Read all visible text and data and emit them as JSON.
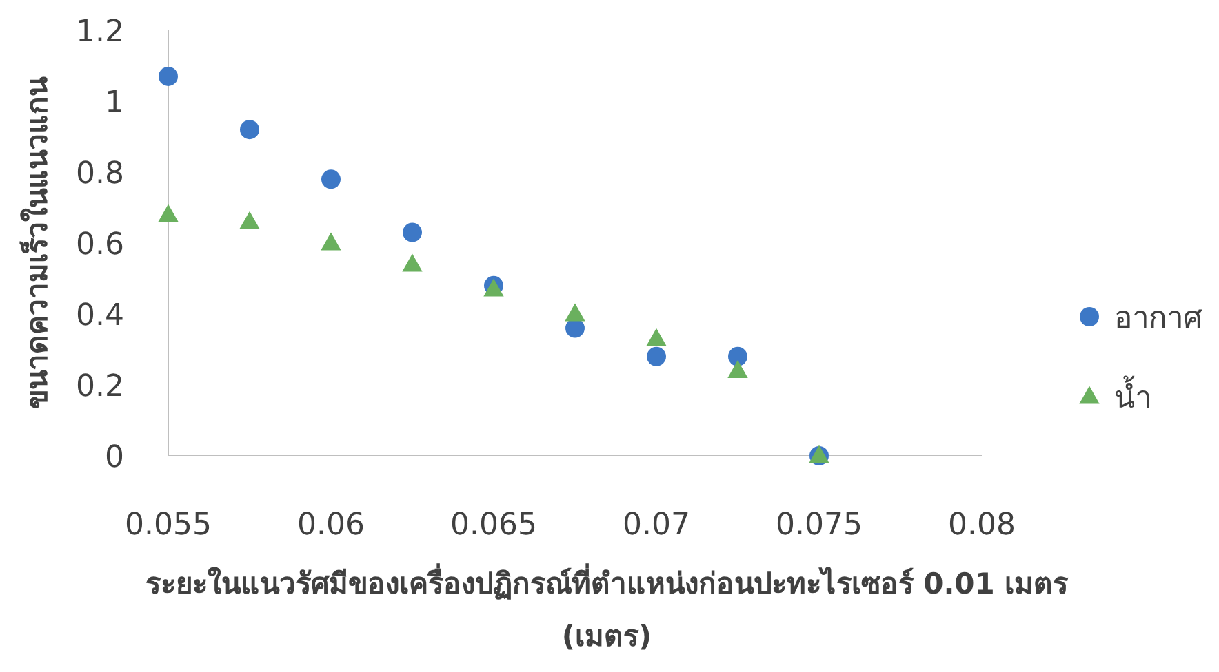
{
  "chart_data": {
    "type": "scatter",
    "xlabel": "ระยะในแนวรัศมีของเครื่องปฏิกรณ์ที่ตำแหน่งก่อนปะทะไรเซอร์ 0.01 เมตร (เมตร)",
    "ylabel": "ขนาดความเร็วในแนวแกน",
    "x": [
      0.055,
      0.0575,
      0.06,
      0.0625,
      0.065,
      0.0675,
      0.07,
      0.0725,
      0.075
    ],
    "series": [
      {
        "name": "อากาศ",
        "color": "#3d78c6",
        "marker": "circle",
        "values": [
          1.07,
          0.92,
          0.78,
          0.63,
          0.48,
          0.36,
          0.28,
          0.28,
          0
        ]
      },
      {
        "name": "น้ำ",
        "color": "#6ab05e",
        "marker": "triangle",
        "values": [
          0.68,
          0.66,
          0.6,
          0.54,
          0.47,
          0.4,
          0.33,
          0.24,
          0
        ]
      }
    ],
    "xlim": [
      0.055,
      0.08
    ],
    "xticks": [
      0.055,
      0.06,
      0.065,
      0.07,
      0.075,
      0.08
    ],
    "ylim": [
      0,
      1.2
    ],
    "yticks": [
      0,
      0.2,
      0.4,
      0.6,
      0.8,
      1,
      1.2
    ],
    "grid": false,
    "legend": "right"
  }
}
